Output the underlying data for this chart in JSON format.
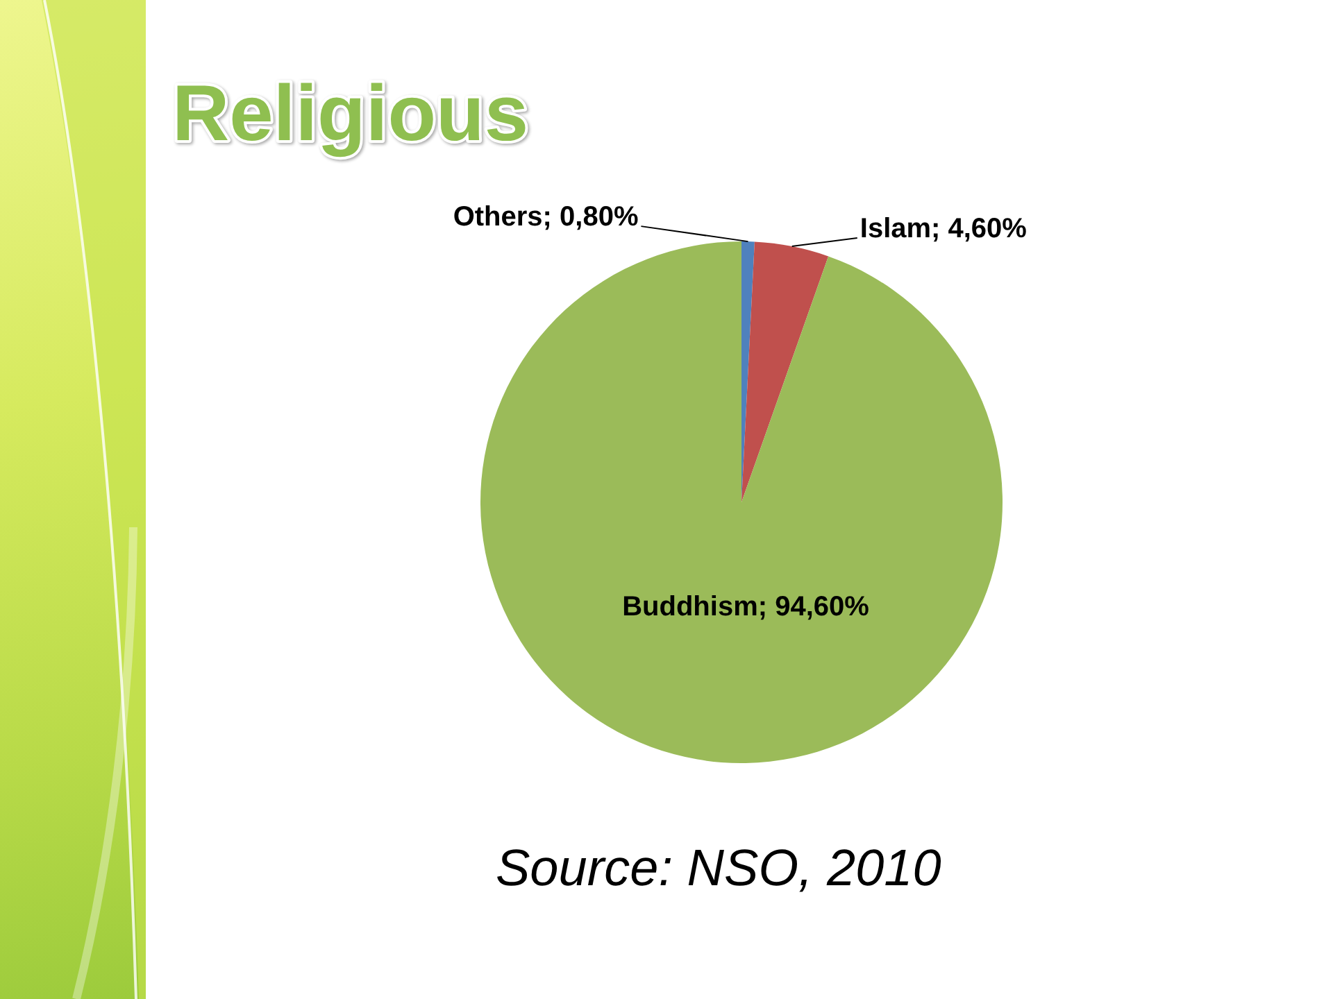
{
  "chart_data": {
    "type": "pie",
    "title": "Religious",
    "categories": [
      "Others",
      "Islam",
      "Buddhism"
    ],
    "values": [
      0.8,
      4.6,
      94.6
    ],
    "colors": [
      "#4f81bd",
      "#c0504d",
      "#9bbb59"
    ],
    "value_labels": [
      "0,80%",
      "4,60%",
      "94,60%"
    ],
    "annotations": [
      "Source: NSO, 2010"
    ]
  }
}
